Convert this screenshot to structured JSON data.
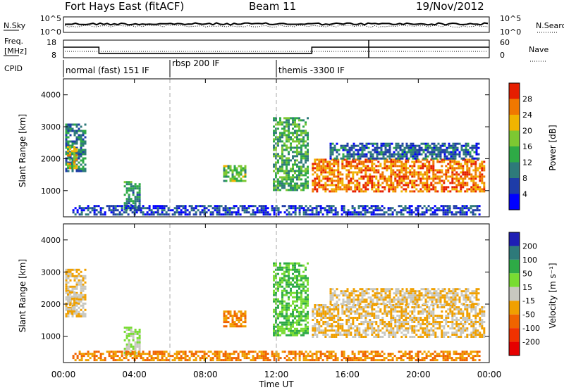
{
  "header": {
    "radar": "Fort Hays East (fitACF)",
    "beam": "Beam 11",
    "date": "19/Nov/2012"
  },
  "noise_panel": {
    "left_label": "N.Sky",
    "left_ticks": [
      "10^5",
      "10^0"
    ],
    "right_label": "N.Search",
    "right_ticks": [
      "10^5",
      "10^0"
    ]
  },
  "freq_panel": {
    "left_label_1": "Freq.",
    "left_label_2": "[MHz]",
    "left_ticks": [
      "18",
      "8"
    ],
    "right_label": "Nave",
    "right_ticks": [
      "60",
      "0"
    ]
  },
  "cpid": {
    "label": "CPID",
    "segments": [
      {
        "text": "normal (fast) 151 IF",
        "start_h": 0
      },
      {
        "text": "rbsp 200 IF",
        "start_h": 6
      },
      {
        "text": "themis -3300 IF",
        "start_h": 12
      }
    ]
  },
  "time_axis": {
    "label": "Time UT",
    "ticks": [
      "00:00",
      "04:00",
      "08:00",
      "12:00",
      "16:00",
      "20:00",
      "00:00"
    ]
  },
  "range_axis": {
    "label": "Slant Range [km]",
    "ticks": [
      "1000",
      "2000",
      "3000",
      "4000"
    ]
  },
  "power_scale": {
    "label": "Power [dB]",
    "ticks": [
      "4",
      "8",
      "12",
      "16",
      "20",
      "24",
      "28"
    ],
    "colors": [
      "#0000ff",
      "#1e3ca8",
      "#2e7a7a",
      "#2eaa46",
      "#7dc832",
      "#f0b400",
      "#f07800",
      "#e61e00"
    ]
  },
  "velocity_scale": {
    "label": "Velocity [m s⁻¹]",
    "ticks": [
      "200",
      "100",
      "50",
      "15",
      "-15",
      "-50",
      "-100",
      "-200"
    ],
    "colors": [
      "#1e1eb4",
      "#2e7a7a",
      "#2eaa46",
      "#78dc32",
      "#c8c8c0",
      "#f0a000",
      "#f06400",
      "#f03200",
      "#e60000"
    ]
  },
  "chart_data": {
    "type": "heatmap",
    "x_range_h": [
      0,
      24
    ],
    "y_range_km": [
      180,
      4500
    ],
    "dashed_lines_h": [
      6,
      12
    ],
    "frequency_mhz": [
      {
        "from_h": 0,
        "to_h": 2,
        "value": 14
      },
      {
        "from_h": 2,
        "to_h": 14,
        "value": 10.5
      },
      {
        "from_h": 14,
        "to_h": 24,
        "value": 14
      }
    ],
    "echo_regions": [
      {
        "t0": 0.1,
        "t1": 1.3,
        "r0": 1600,
        "r1": 3100,
        "power": 10,
        "velocity": -15
      },
      {
        "t0": 0.2,
        "t1": 0.8,
        "r0": 1700,
        "r1": 2400,
        "power": 20,
        "velocity": -15
      },
      {
        "t0": 3.4,
        "t1": 4.4,
        "r0": 400,
        "r1": 1300,
        "power": 12,
        "velocity": 15
      },
      {
        "t0": 9.0,
        "t1": 10.3,
        "r0": 1300,
        "r1": 1800,
        "power": 16,
        "velocity": -50
      },
      {
        "t0": 11.8,
        "t1": 13.8,
        "r0": 1000,
        "r1": 3300,
        "power": 14,
        "velocity": 50
      },
      {
        "t0": 14.0,
        "t1": 23.8,
        "r0": 950,
        "r1": 2000,
        "power": 26,
        "velocity": -15
      },
      {
        "t0": 15.0,
        "t1": 23.5,
        "r0": 2000,
        "r1": 2500,
        "power": 8,
        "velocity": -15
      },
      {
        "t0": 0.5,
        "t1": 23.5,
        "r0": 200,
        "r1": 550,
        "power": 6,
        "velocity": -50
      }
    ]
  }
}
